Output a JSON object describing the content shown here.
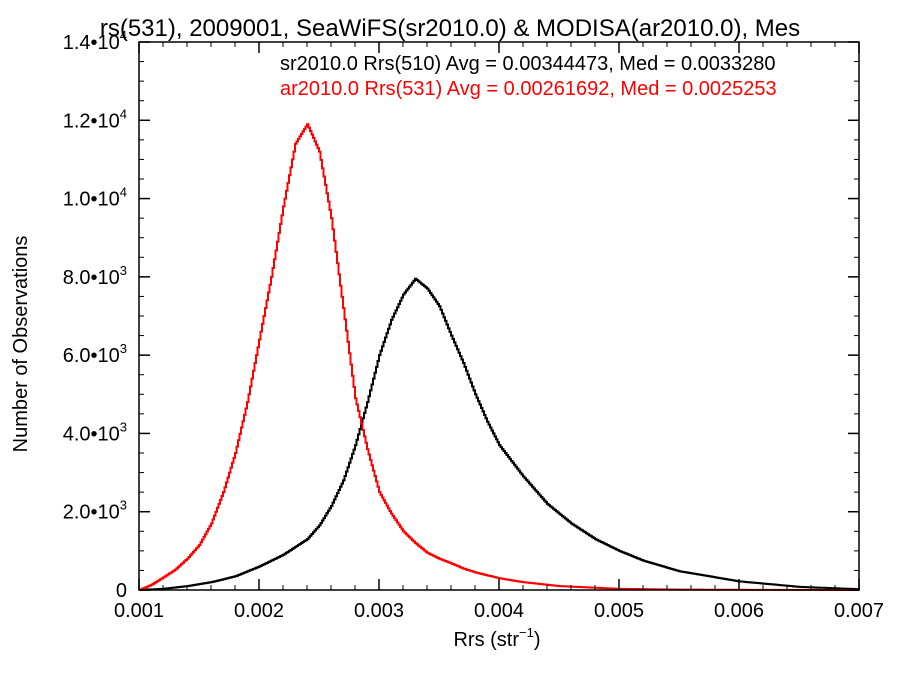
{
  "chart_data": {
    "type": "line",
    "title": "rs(531), 2009001, SeaWiFS(sr2010.0) & MODISA(ar2010.0), Mes",
    "xlabel": "Rrs (str",
    "xlabel_sup": "−1",
    "xlabel_end": ")",
    "ylabel": "Number of Observations",
    "xlim": [
      0.001,
      0.007
    ],
    "ylim": [
      0,
      14000
    ],
    "x_ticks": [
      {
        "value": 0.001,
        "label": "0.001"
      },
      {
        "value": 0.002,
        "label": "0.002"
      },
      {
        "value": 0.003,
        "label": "0.003"
      },
      {
        "value": 0.004,
        "label": "0.004"
      },
      {
        "value": 0.005,
        "label": "0.005"
      },
      {
        "value": 0.006,
        "label": "0.006"
      },
      {
        "value": 0.007,
        "label": "0.007"
      }
    ],
    "y_ticks": [
      {
        "value": 0,
        "mant": "0",
        "exp": ""
      },
      {
        "value": 2000,
        "mant": "2.0•10",
        "exp": "3"
      },
      {
        "value": 4000,
        "mant": "4.0•10",
        "exp": "3"
      },
      {
        "value": 6000,
        "mant": "6.0•10",
        "exp": "3"
      },
      {
        "value": 8000,
        "mant": "8.0•10",
        "exp": "3"
      },
      {
        "value": 10000,
        "mant": "1.0•10",
        "exp": "4"
      },
      {
        "value": 12000,
        "mant": "1.2•10",
        "exp": "4"
      },
      {
        "value": 14000,
        "mant": "1.4•10",
        "exp": "4"
      }
    ],
    "legend_placement": "top-right",
    "series": [
      {
        "name": "sr2010.0 Rrs(510) Avg = 0.00344473, Med = 0.0033280",
        "color": "#000000",
        "x": [
          0.001,
          0.0012,
          0.0014,
          0.0016,
          0.0018,
          0.002,
          0.0022,
          0.0024,
          0.0025,
          0.0026,
          0.0027,
          0.0028,
          0.0029,
          0.003,
          0.0031,
          0.0032,
          0.0033,
          0.0034,
          0.0035,
          0.0036,
          0.0037,
          0.0038,
          0.0039,
          0.004,
          0.0042,
          0.0044,
          0.0046,
          0.0048,
          0.005,
          0.0052,
          0.0055,
          0.006,
          0.0065,
          0.007
        ],
        "y": [
          0,
          30,
          100,
          200,
          350,
          600,
          900,
          1300,
          1650,
          2150,
          2800,
          3700,
          4800,
          6000,
          6900,
          7550,
          7950,
          7700,
          7250,
          6500,
          5800,
          5000,
          4300,
          3700,
          2900,
          2200,
          1700,
          1300,
          1000,
          750,
          480,
          220,
          80,
          20
        ]
      },
      {
        "name": "ar2010.0 Rrs(531) Avg = 0.00261692, Med = 0.0025253",
        "color": "#ff0000",
        "x": [
          0.001,
          0.0011,
          0.0012,
          0.0013,
          0.0014,
          0.0015,
          0.0016,
          0.0017,
          0.0018,
          0.0019,
          0.002,
          0.0021,
          0.0022,
          0.0023,
          0.0024,
          0.0025,
          0.0026,
          0.0027,
          0.0028,
          0.0029,
          0.003,
          0.0031,
          0.0032,
          0.0033,
          0.0034,
          0.0035,
          0.0036,
          0.0037,
          0.0038,
          0.004,
          0.0042,
          0.0045,
          0.005,
          0.0055,
          0.006,
          0.007
        ],
        "y": [
          0,
          130,
          320,
          520,
          800,
          1150,
          1700,
          2500,
          3500,
          4800,
          6400,
          8000,
          9800,
          11400,
          11900,
          11200,
          9500,
          7200,
          4900,
          3600,
          2500,
          1950,
          1500,
          1200,
          950,
          800,
          680,
          550,
          450,
          300,
          200,
          100,
          30,
          10,
          5,
          0
        ]
      }
    ]
  }
}
